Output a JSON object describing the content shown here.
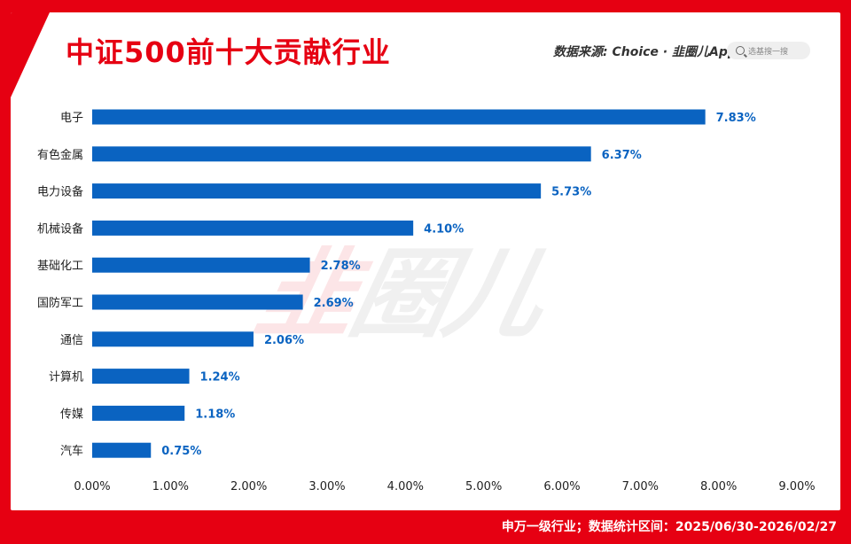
{
  "header": {
    "title": "中证500前十大贡献行业",
    "source_label": "数据来源: Choice · ",
    "brand": "韭圈儿App",
    "search_placeholder": "选基搜一搜"
  },
  "watermark": "韭圈儿",
  "footer": "申万一级行业；数据统计区间：2025/06/30-2026/02/27",
  "colors": {
    "bar": "#0a63c1",
    "label": "#0a63c1",
    "accent": "#e60012"
  },
  "chart_data": {
    "type": "bar",
    "orientation": "horizontal",
    "categories": [
      "电子",
      "有色金属",
      "电力设备",
      "机械设备",
      "基础化工",
      "国防军工",
      "通信",
      "计算机",
      "传媒",
      "汽车"
    ],
    "values": [
      7.83,
      6.37,
      5.73,
      4.1,
      2.78,
      2.69,
      2.06,
      1.24,
      1.18,
      0.75
    ],
    "value_labels": [
      "7.83%",
      "6.37%",
      "5.73%",
      "4.10%",
      "2.78%",
      "2.69%",
      "2.06%",
      "1.24%",
      "1.18%",
      "0.75%"
    ],
    "xlim": [
      0,
      9
    ],
    "xticks": [
      "0.00%",
      "1.00%",
      "2.00%",
      "3.00%",
      "4.00%",
      "5.00%",
      "6.00%",
      "7.00%",
      "8.00%",
      "9.00%"
    ],
    "grid": false,
    "legend": "none"
  }
}
